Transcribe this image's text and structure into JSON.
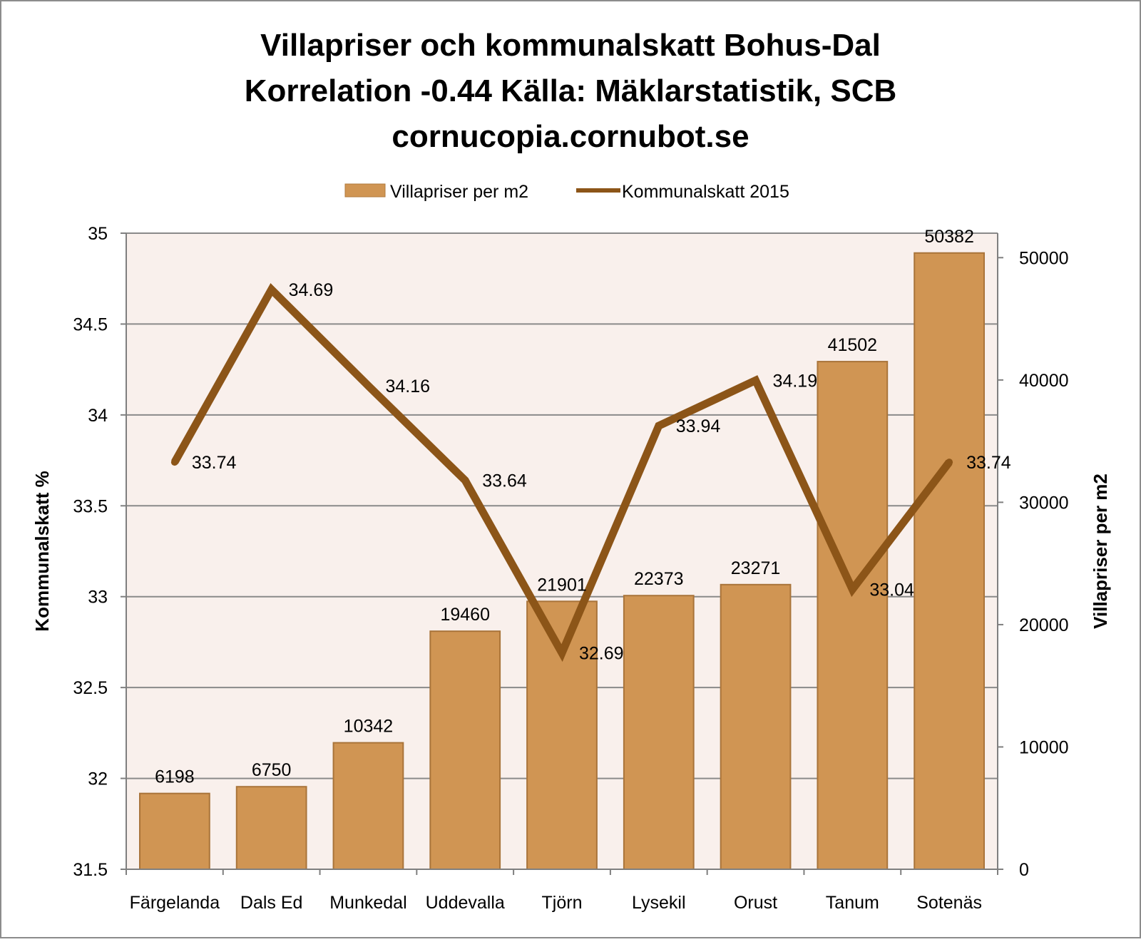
{
  "chart_data": {
    "type": "bar+line",
    "title_lines": [
      "Villapriser och kommunalskatt Bohus-Dal",
      "Korrelation -0.44 Källa: Mäklarstatistik, SCB",
      "cornucopia.cornubot.se"
    ],
    "categories": [
      "Färgelanda",
      "Dals Ed",
      "Munkedal",
      "Uddevalla",
      "Tjörn",
      "Lysekil",
      "Orust",
      "Tanum",
      "Sotenäs"
    ],
    "series": [
      {
        "name": "Villapriser per m2",
        "type": "bar",
        "axis": "right",
        "values": [
          6198,
          6750,
          10342,
          19460,
          21901,
          22373,
          23271,
          41502,
          50382
        ],
        "color": "#D09553"
      },
      {
        "name": "Kommunalskatt 2015",
        "type": "line",
        "axis": "left",
        "values": [
          33.74,
          34.69,
          34.16,
          33.64,
          32.69,
          33.94,
          34.19,
          33.04,
          33.74
        ],
        "color": "#8C5518"
      }
    ],
    "y_left": {
      "label": "Kommunalskatt %",
      "range": [
        31.5,
        35
      ],
      "ticks": [
        "31.5",
        "32",
        "32.5",
        "33",
        "33.5",
        "34",
        "34.5",
        "35"
      ]
    },
    "y_right": {
      "label": "Villapriser per m2",
      "range": [
        0,
        52000
      ],
      "ticks": [
        "0",
        "10000",
        "20000",
        "30000",
        "40000",
        "50000"
      ]
    },
    "legend_position": "top-center",
    "gridlines": true,
    "plot_background": "#F9F0EC"
  }
}
